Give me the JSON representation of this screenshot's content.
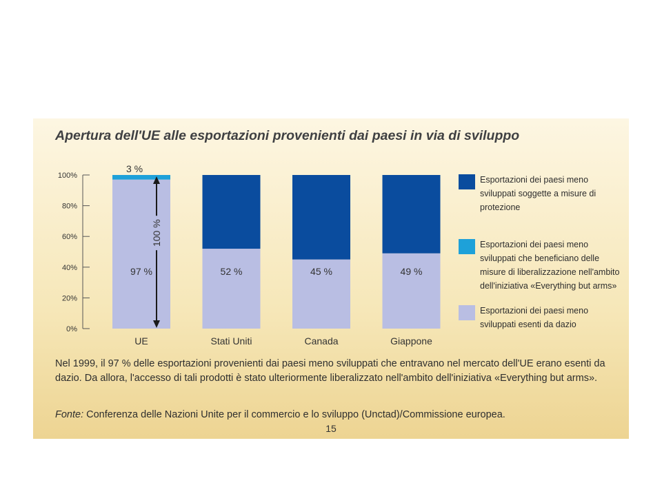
{
  "title": "Apertura dell'UE alle esportazioni provenienti dai paesi in via di sviluppo",
  "chart_data": {
    "type": "bar",
    "stacked": true,
    "categories": [
      "UE",
      "Stati Uniti",
      "Canada",
      "Giappone"
    ],
    "series": [
      {
        "name": "Esportazioni dei paesi meno sviluppati esenti da dazio",
        "values": [
          97,
          52,
          45,
          49
        ],
        "color": "#b9bee3"
      },
      {
        "name": "Esportazioni dei paesi meno sviluppati che beneficiano delle misure di liberalizzazione nell'ambito dell'iniziativa «Everything but arms»",
        "values": [
          3,
          0,
          0,
          0
        ],
        "color": "#1ea1d9"
      },
      {
        "name": "Esportazioni dei paesi meno sviluppati soggette a misure di protezione",
        "values": [
          0,
          48,
          55,
          51
        ],
        "color": "#0a4c9e"
      }
    ],
    "data_labels": [
      "97 %",
      "52 %",
      "45 %",
      "49 %"
    ],
    "top_label": "3 %",
    "arrow_label": "100 %",
    "yticks": [
      "0%",
      "20%",
      "40%",
      "60%",
      "80%",
      "100%"
    ],
    "ylim": [
      0,
      100
    ],
    "xlabel": "",
    "ylabel": "",
    "legend_position": "right"
  },
  "legend": [
    {
      "label": "Esportazioni dei paesi meno sviluppati soggette a misure di protezione",
      "color": "#0a4c9e"
    },
    {
      "label": "Esportazioni dei paesi meno sviluppati che beneficiano delle misure di liberalizzazione nell'ambito dell'iniziativa «Everything but arms»",
      "color": "#1ea1d9"
    },
    {
      "label": "Esportazioni dei paesi meno sviluppati esenti da dazio",
      "color": "#b9bee3"
    }
  ],
  "note": "Nel 1999, il 97 % delle esportazioni provenienti dai paesi meno sviluppati che entravano nel mercato dell'UE erano esenti da dazio. Da allora, l'accesso di tali prodotti è stato ulteriormente liberalizzato nell'ambito dell'iniziativa «Everything but arms».",
  "source": {
    "label": "Fonte:",
    "text": "Conferenza delle Nazioni Unite per il commercio e lo sviluppo (Unctad)/Commissione europea."
  },
  "page_number": "15"
}
